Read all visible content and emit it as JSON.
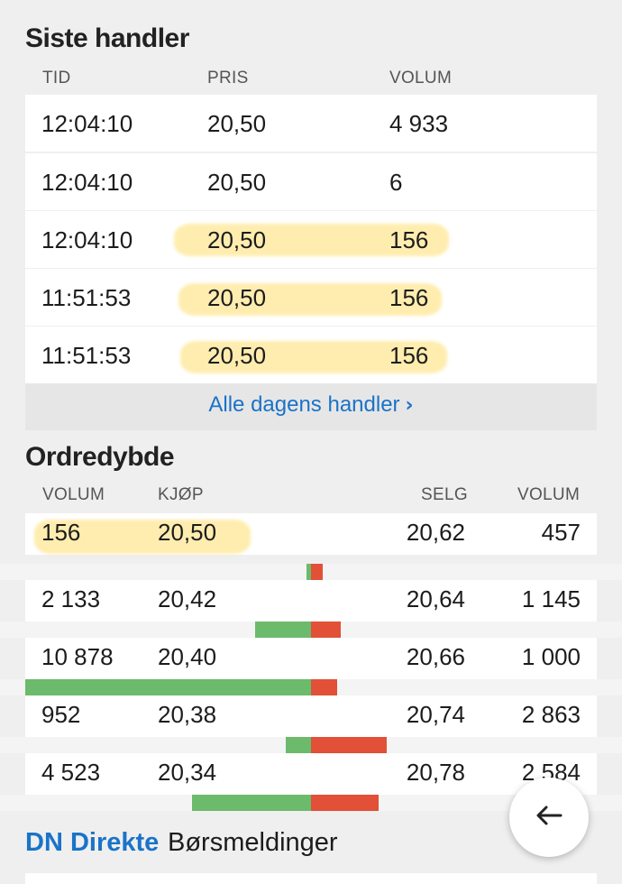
{
  "trades": {
    "title": "Siste handler",
    "headers": [
      "TID",
      "PRIS",
      "VOLUM"
    ],
    "rows": [
      {
        "time": "12:04:10",
        "price": "20,50",
        "volume": "4 933",
        "highlight": false
      },
      {
        "time": "12:04:10",
        "price": "20,50",
        "volume": "6",
        "highlight": false
      },
      {
        "time": "12:04:10",
        "price": "20,50",
        "volume": "156",
        "highlight": true
      },
      {
        "time": "11:51:53",
        "price": "20,50",
        "volume": "156",
        "highlight": true
      },
      {
        "time": "11:51:53",
        "price": "20,50",
        "volume": "156",
        "highlight": true
      }
    ],
    "all_link": "Alle dagens handler"
  },
  "orderbook": {
    "title": "Ordredybde",
    "headers": [
      "VOLUM",
      "KJØP",
      "SELG",
      "VOLUM"
    ],
    "rows": [
      {
        "buy_volume": "156",
        "buy_price": "20,50",
        "sell_price": "20,62",
        "sell_volume": "457",
        "highlight": true
      },
      {
        "buy_volume": "2 133",
        "buy_price": "20,42",
        "sell_price": "20,64",
        "sell_volume": "1 145",
        "highlight": false
      },
      {
        "buy_volume": "10 878",
        "buy_price": "20,40",
        "sell_price": "20,66",
        "sell_volume": "1 000",
        "highlight": false
      },
      {
        "buy_volume": "952",
        "buy_price": "20,38",
        "sell_price": "20,74",
        "sell_volume": "2 863",
        "highlight": false
      },
      {
        "buy_volume": "4 523",
        "buy_price": "20,34",
        "sell_price": "20,78",
        "sell_volume": "2 584",
        "highlight": false
      }
    ]
  },
  "tabs": {
    "active": "DN Direkte",
    "other": "Børsmeldinger"
  },
  "fab": {
    "icon": "arrow-left-icon"
  },
  "colors": {
    "link": "#1a73c8",
    "buy_bar": "#6cba6c",
    "sell_bar": "#e15037",
    "highlight": "#ffde6e"
  }
}
